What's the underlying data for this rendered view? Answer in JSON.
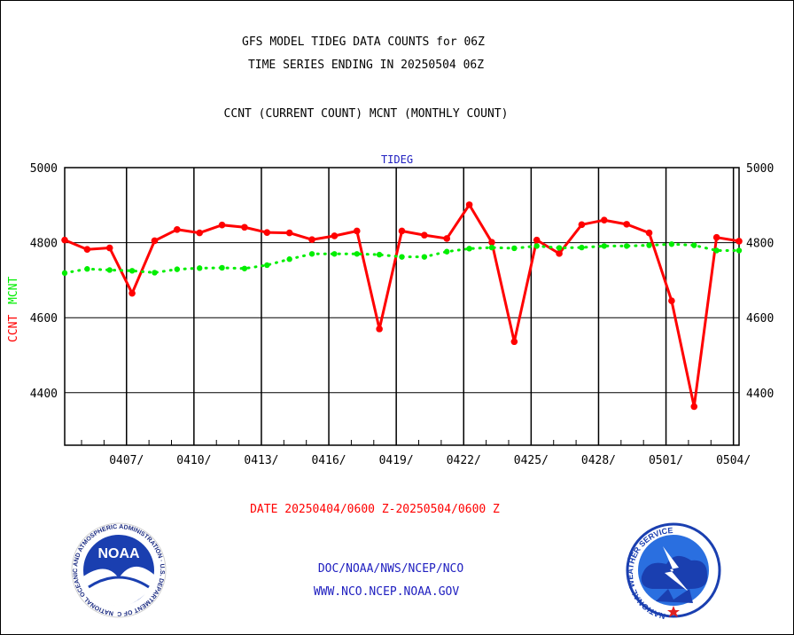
{
  "header": {
    "title_line1": "GFS MODEL TIDEG DATA COUNTS for 06Z",
    "title_line2": "TIME SERIES ENDING IN 20250504 06Z",
    "subtitle": "CCNT (CURRENT COUNT) MCNT (MONTHLY COUNT)"
  },
  "footer": {
    "date_range": "DATE 20250404/0600 Z-20250504/0600 Z",
    "org_path": "DOC/NOAA/NWS/NCEP/NCO",
    "website": "WWW.NCO.NCEP.NOAA.GOV"
  },
  "logos": {
    "noaa_text": "NOAA",
    "noaa_ring": "NATIONAL OCEANIC AND ATMOSPHERIC ADMINISTRATION · U.S. DEPARTMENT OF COMMERCE",
    "nws_ring": "NATIONAL WEATHER SERVICE"
  },
  "colors": {
    "ccnt": "#ff0000",
    "mcnt": "#00ee00",
    "title": "#000000",
    "date_range": "#ff0000",
    "footer_text": "#2020c0",
    "panel_label": "#2020c0"
  },
  "chart_data": {
    "type": "line",
    "panel_label": "TIDEG",
    "ylabel_left": [
      "CCNT",
      "MCNT"
    ],
    "ylim": [
      4260,
      5000
    ],
    "yticks": [
      4400,
      4600,
      4800,
      5000
    ],
    "xlim": [
      "20250404/06",
      "20250504/06"
    ],
    "xtick_labels": [
      "0407/",
      "0410/",
      "0413/",
      "0416/",
      "0419/",
      "0422/",
      "0425/",
      "0428/",
      "0501/",
      "0504/"
    ],
    "xtick_dates": [
      "20250407",
      "20250410",
      "20250413",
      "20250416",
      "20250419",
      "20250422",
      "20250425",
      "20250428",
      "20250501",
      "20250504"
    ],
    "grid": true,
    "x": [
      "20250404",
      "20250405",
      "20250406",
      "20250407",
      "20250408",
      "20250409",
      "20250410",
      "20250411",
      "20250412",
      "20250413",
      "20250414",
      "20250415",
      "20250416",
      "20250417",
      "20250418",
      "20250419",
      "20250420",
      "20250421",
      "20250422",
      "20250423",
      "20250424",
      "20250425",
      "20250426",
      "20250427",
      "20250428",
      "20250429",
      "20250430",
      "20250501",
      "20250502",
      "20250503",
      "20250504"
    ],
    "series": [
      {
        "name": "CCNT",
        "color": "#ff0000",
        "style": "solid",
        "values": [
          4807,
          4782,
          4786,
          4665,
          4805,
          4835,
          4826,
          4847,
          4841,
          4827,
          4826,
          4808,
          4818,
          4831,
          4570,
          4831,
          4820,
          4811,
          4901,
          4801,
          4536,
          4807,
          4771,
          4848,
          4860,
          4849,
          4826,
          4645,
          4363,
          4814,
          4804
        ]
      },
      {
        "name": "MCNT",
        "color": "#00ee00",
        "style": "dotted",
        "values": [
          4719,
          4730,
          4727,
          4725,
          4720,
          4729,
          4732,
          4733,
          4731,
          4740,
          4756,
          4770,
          4770,
          4770,
          4768,
          4762,
          4762,
          4776,
          4784,
          4787,
          4785,
          4791,
          4786,
          4787,
          4791,
          4791,
          4793,
          4796,
          4793,
          4779,
          4779
        ]
      }
    ]
  }
}
